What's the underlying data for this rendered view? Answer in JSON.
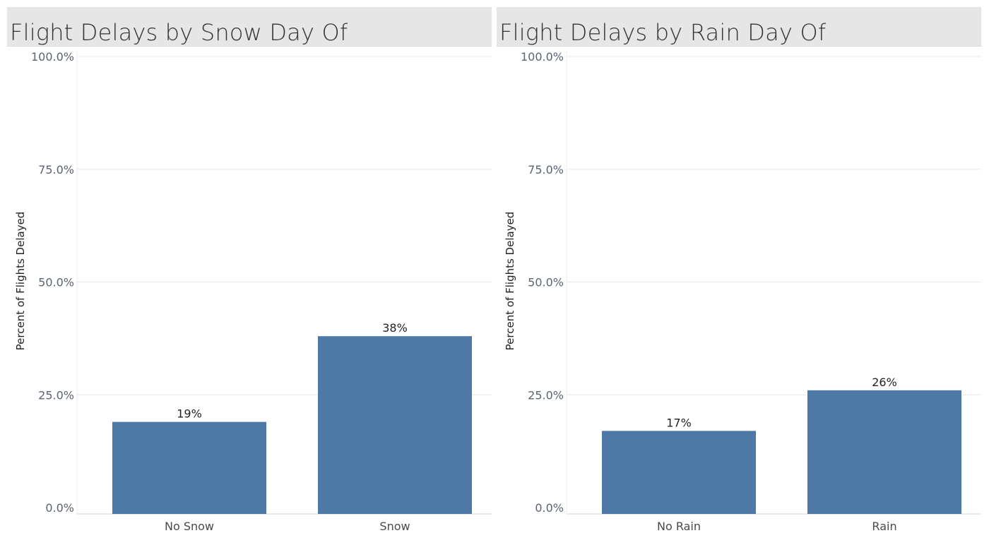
{
  "colors": {
    "bar": "#4e79a7",
    "title_bg": "#e6e6e6",
    "gridline": "#e8e8e8"
  },
  "chart_data": [
    {
      "type": "bar",
      "title": "Flight Delays by Snow Day Of",
      "xlabel": "",
      "ylabel": "Percent of Flights Delayed",
      "categories": [
        "No Snow",
        "Snow"
      ],
      "values": [
        0.19,
        0.38
      ],
      "data_labels": [
        "19%",
        "38%"
      ],
      "ylim": [
        0,
        1
      ],
      "yticks": [
        0,
        0.25,
        0.5,
        0.75,
        1
      ],
      "ytick_labels": [
        "0.0%",
        "25.0%",
        "50.0%",
        "75.0%",
        "100.0%"
      ],
      "grid": true
    },
    {
      "type": "bar",
      "title": "Flight Delays by Rain Day Of",
      "xlabel": "",
      "ylabel": "Percent of Flights Delayed",
      "categories": [
        "No Rain",
        "Rain"
      ],
      "values": [
        0.17,
        0.26
      ],
      "data_labels": [
        "17%",
        "26%"
      ],
      "ylim": [
        0,
        1
      ],
      "yticks": [
        0,
        0.25,
        0.5,
        0.75,
        1
      ],
      "ytick_labels": [
        "0.0%",
        "25.0%",
        "50.0%",
        "75.0%",
        "100.0%"
      ],
      "grid": true
    }
  ]
}
